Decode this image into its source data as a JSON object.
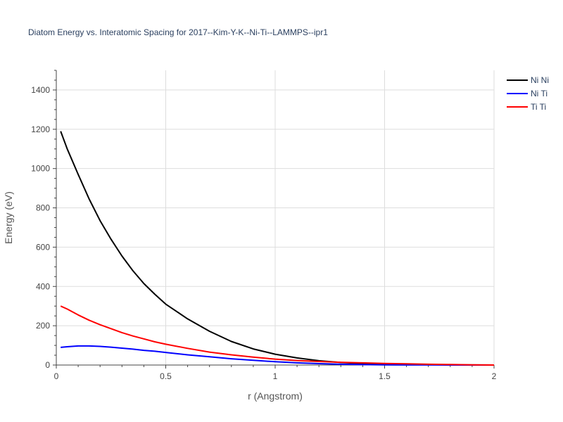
{
  "chart_data": {
    "type": "line",
    "title": "Diatom Energy vs. Interatomic Spacing for 2017--Kim-Y-K--Ni-Ti--LAMMPS--ipr1",
    "xlabel": "r (Angstrom)",
    "ylabel": "Energy (eV)",
    "xlim": [
      0,
      2
    ],
    "ylim": [
      0,
      1500
    ],
    "x_ticks": [
      "0",
      "0.5",
      "1",
      "1.5",
      "2"
    ],
    "x_tick_values": [
      0,
      0.5,
      1,
      1.5,
      2
    ],
    "y_ticks": [
      "0",
      "200",
      "400",
      "600",
      "800",
      "1000",
      "1200",
      "1400"
    ],
    "y_tick_values": [
      0,
      200,
      400,
      600,
      800,
      1000,
      1200,
      1400
    ],
    "grid": true,
    "legend_position": "top-right",
    "x": [
      0.02,
      0.05,
      0.1,
      0.15,
      0.2,
      0.25,
      0.3,
      0.35,
      0.4,
      0.45,
      0.5,
      0.6,
      0.7,
      0.8,
      0.9,
      1.0,
      1.1,
      1.2,
      1.3,
      1.4,
      1.5,
      1.6,
      1.7,
      1.8,
      1.9,
      2.0
    ],
    "series": [
      {
        "name": "Ni Ni",
        "color": "#000000",
        "values": [
          1190,
          1100,
          970,
          845,
          735,
          640,
          555,
          480,
          415,
          360,
          310,
          235,
          172,
          120,
          82,
          55,
          36,
          22,
          13,
          8,
          5,
          3,
          2,
          1,
          0.5,
          0
        ]
      },
      {
        "name": "Ni Ti",
        "color": "#0000ff",
        "values": [
          90,
          93,
          97,
          97,
          95,
          91,
          86,
          81,
          75,
          70,
          64,
          52,
          42,
          32,
          24,
          17,
          11,
          7,
          4,
          2,
          1,
          0.5,
          0.2,
          0,
          0,
          0
        ]
      },
      {
        "name": "Ti Ti",
        "color": "#ff0000",
        "values": [
          300,
          285,
          255,
          228,
          205,
          185,
          165,
          148,
          133,
          118,
          106,
          85,
          66,
          52,
          40,
          30,
          23,
          18,
          14,
          11,
          8,
          6,
          4,
          2.5,
          1,
          0
        ]
      }
    ]
  }
}
